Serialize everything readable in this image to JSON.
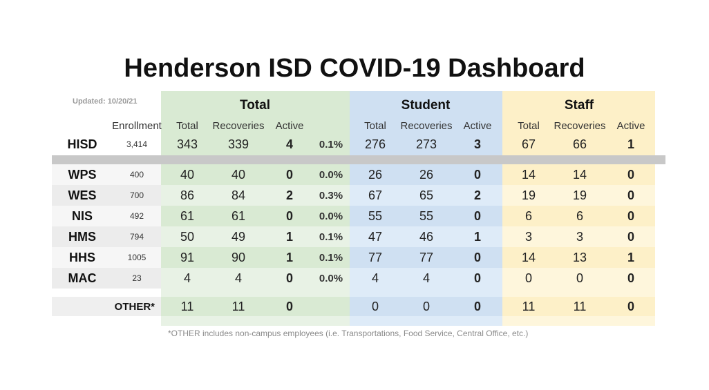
{
  "title": "Henderson ISD COVID-19 Dashboard",
  "updated": "Updated: 10/20/21",
  "groups": [
    "Total",
    "Student",
    "Staff"
  ],
  "enrollment_header": "Enrollment",
  "subheaders": {
    "total": [
      "Total",
      "Recoveries",
      "Active"
    ],
    "student": [
      "Total",
      "Recoveries",
      "Active"
    ],
    "staff": [
      "Total",
      "Recoveries",
      "Active"
    ]
  },
  "district_row": {
    "name": "HISD",
    "enrollment": "3,414",
    "total": [
      "343",
      "339",
      "4",
      "0.1%"
    ],
    "student": [
      "276",
      "273",
      "3"
    ],
    "staff": [
      "67",
      "66",
      "1"
    ]
  },
  "rows": [
    {
      "name": "WPS",
      "enrollment": "400",
      "total": [
        "40",
        "40",
        "0",
        "0.0%"
      ],
      "student": [
        "26",
        "26",
        "0"
      ],
      "staff": [
        "14",
        "14",
        "0"
      ]
    },
    {
      "name": "WES",
      "enrollment": "700",
      "total": [
        "86",
        "84",
        "2",
        "0.3%"
      ],
      "student": [
        "67",
        "65",
        "2"
      ],
      "staff": [
        "19",
        "19",
        "0"
      ]
    },
    {
      "name": "NIS",
      "enrollment": "492",
      "total": [
        "61",
        "61",
        "0",
        "0.0%"
      ],
      "student": [
        "55",
        "55",
        "0"
      ],
      "staff": [
        "6",
        "6",
        "0"
      ]
    },
    {
      "name": "HMS",
      "enrollment": "794",
      "total": [
        "50",
        "49",
        "1",
        "0.1%"
      ],
      "student": [
        "47",
        "46",
        "1"
      ],
      "staff": [
        "3",
        "3",
        "0"
      ]
    },
    {
      "name": "HHS",
      "enrollment": "1005",
      "total": [
        "91",
        "90",
        "1",
        "0.1%"
      ],
      "student": [
        "77",
        "77",
        "0"
      ],
      "staff": [
        "14",
        "13",
        "1"
      ]
    },
    {
      "name": "MAC",
      "enrollment": "23",
      "total": [
        "4",
        "4",
        "0",
        "0.0%"
      ],
      "student": [
        "4",
        "4",
        "0"
      ],
      "staff": [
        "0",
        "0",
        "0"
      ]
    }
  ],
  "other_row": {
    "name": "OTHER*",
    "total": [
      "11",
      "11",
      "0"
    ],
    "student": [
      "0",
      "0",
      "0"
    ],
    "staff": [
      "11",
      "11",
      "0"
    ]
  },
  "footnote": "*OTHER includes non-campus employees (i.e. Transportations, Food Service, Central Office, etc.)",
  "colors": {
    "total_bg": "#d9ead3",
    "total_alt": "#e8f2e5",
    "student_bg": "#cfe0f2",
    "student_alt": "#deebf8",
    "staff_bg": "#fdf0c8",
    "staff_alt": "#fef6dc",
    "label_bg": "#efefef",
    "divider": "#c8c8c8"
  }
}
